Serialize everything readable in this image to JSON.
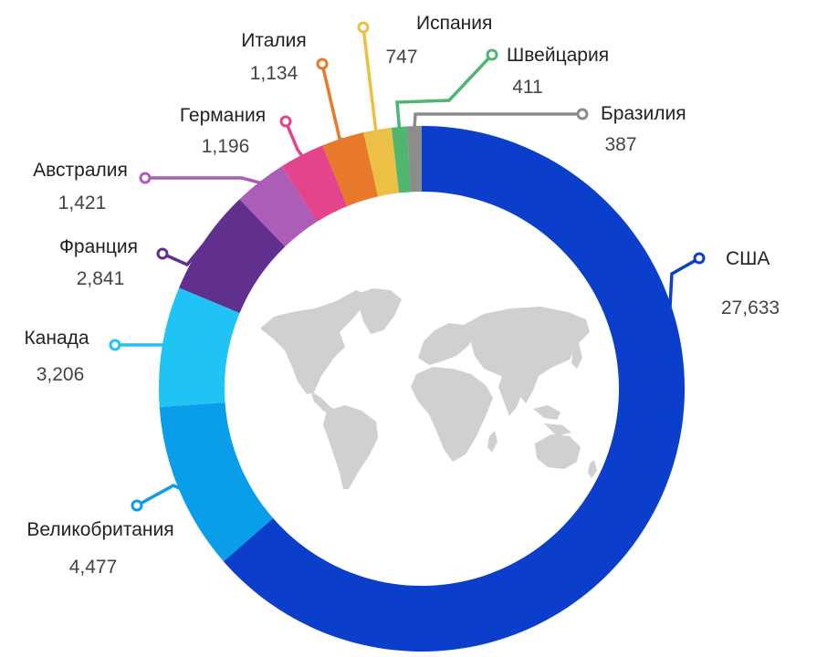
{
  "chart_data": {
    "type": "pie",
    "donut": true,
    "title": "",
    "categories": [
      "США",
      "Великобритания",
      "Канада",
      "Франция",
      "Австралия",
      "Германия",
      "Италия",
      "Испания",
      "Швейцария",
      "Бразилия"
    ],
    "values": [
      27633,
      4477,
      3206,
      2841,
      1421,
      1196,
      1134,
      747,
      411,
      387
    ],
    "value_labels": [
      "27,633",
      "4,477",
      "3,206",
      "2,841",
      "1,421",
      "1,196",
      "1,134",
      "747",
      "411",
      "387"
    ],
    "colors": [
      "#0b3fcb",
      "#0a9de9",
      "#1fc4f4",
      "#61308f",
      "#ab5db7",
      "#e4448b",
      "#e8792b",
      "#ecbf45",
      "#4fb56f",
      "#8c8c8c"
    ],
    "legend": "none",
    "center_graphic": "world-map"
  }
}
